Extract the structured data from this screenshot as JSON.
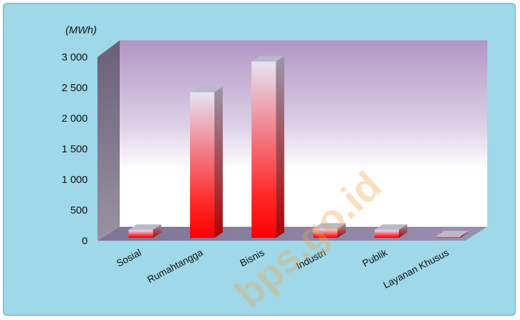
{
  "chart_data": {
    "type": "bar",
    "unit_label": "(MWh)",
    "categories": [
      "Sosial",
      "Rumahtangga",
      "Bisnis",
      "Industri",
      "Publik",
      "Layanan Khusus"
    ],
    "values": [
      130,
      2380,
      2880,
      150,
      130,
      25
    ],
    "ylim": [
      0,
      3000
    ],
    "yticks": [
      "0",
      "500",
      "1 000",
      "1 500",
      "2 000",
      "2 500",
      "3 000"
    ],
    "ytick_values": [
      0,
      500,
      1000,
      1500,
      2000,
      2500,
      3000
    ],
    "bar_color": "#ff1a1a",
    "grid": false,
    "legend": "none"
  },
  "watermark": "bps.go.id"
}
